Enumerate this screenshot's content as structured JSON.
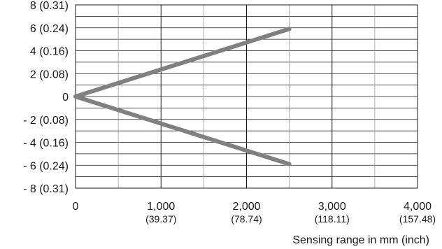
{
  "chart_data": {
    "type": "line",
    "title": "",
    "ylabel": "",
    "xlabel": "Sensing range in mm (inch)",
    "xlim": [
      0,
      4000
    ],
    "ylim": [
      -8,
      8
    ],
    "grid": true,
    "y_tick_labels": [
      {
        "value": 8,
        "label": "8 (0.31)"
      },
      {
        "value": 6,
        "label": "6 (0.24)"
      },
      {
        "value": 4,
        "label": "4 (0.16)"
      },
      {
        "value": 2,
        "label": "2 (0.08)"
      },
      {
        "value": 0,
        "label": "0"
      },
      {
        "value": -2,
        "label": "- 2 (0.08)"
      },
      {
        "value": -4,
        "label": "- 4 (0.16)"
      },
      {
        "value": -6,
        "label": "- 6 (0.24)"
      },
      {
        "value": -8,
        "label": "- 8 (0.31)"
      }
    ],
    "x_tick_labels": [
      {
        "value": 0,
        "label": "0",
        "sub": ""
      },
      {
        "value": 1000,
        "label": "1,000",
        "sub": "(39.37)"
      },
      {
        "value": 2000,
        "label": "2,000",
        "sub": "(78.74)"
      },
      {
        "value": 3000,
        "label": "3,000",
        "sub": "(118.11)"
      },
      {
        "value": 4000,
        "label": "4,000",
        "sub": "(157.48)"
      }
    ],
    "series": [
      {
        "x": [
          0,
          2500
        ],
        "y": [
          0,
          5.9
        ],
        "color": "#808080"
      },
      {
        "x": [
          0,
          2500
        ],
        "y": [
          0,
          -5.9
        ],
        "color": "#808080"
      }
    ]
  }
}
